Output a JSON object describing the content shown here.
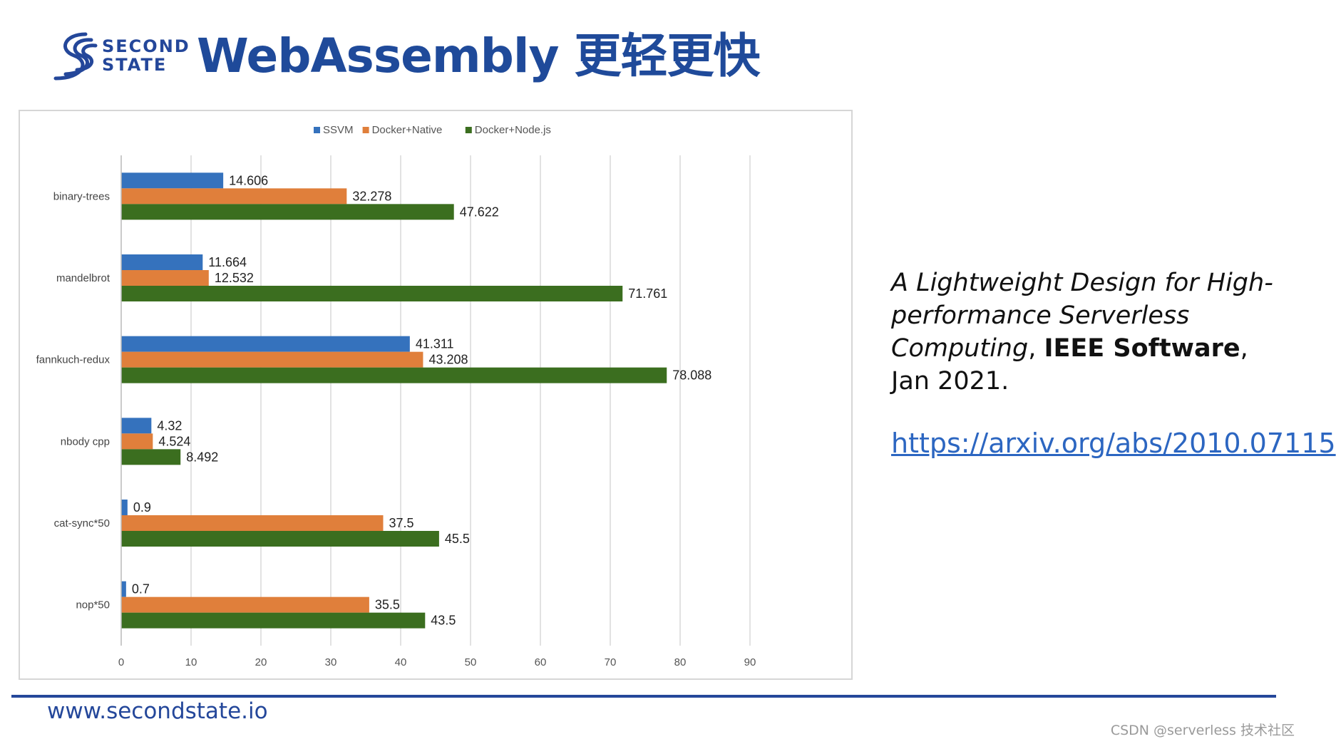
{
  "header": {
    "logo_line1": "SECOND",
    "logo_line2": "STATE",
    "title": "WebAssembly 更轻更快"
  },
  "chart_data": {
    "type": "bar",
    "orientation": "horizontal",
    "categories": [
      "binary-trees",
      "mandelbrot",
      "fannkuch-redux",
      "nbody cpp",
      "cat-sync*50",
      "nop*50"
    ],
    "series": [
      {
        "name": "SSVM",
        "color": "#3572bd",
        "values": [
          14.606,
          11.664,
          41.311,
          4.32,
          0.9,
          0.7
        ],
        "labels": [
          "14.606",
          "11.664",
          "41.311",
          "4.32",
          "0.9",
          "0.7"
        ]
      },
      {
        "name": "Docker+Native",
        "color": "#e07f3b",
        "values": [
          32.278,
          12.532,
          43.208,
          4.524,
          37.5,
          35.5
        ],
        "labels": [
          "32.278",
          "12.532",
          "43.208",
          "4.524",
          "37.5",
          "35.5"
        ]
      },
      {
        "name": "Docker+Node.js",
        "color": "#3b6e1f",
        "values": [
          47.622,
          71.761,
          78.088,
          8.492,
          45.5,
          43.5
        ],
        "labels": [
          "47.622",
          "71.761",
          "78.088",
          "8.492",
          "45.5",
          "43.5"
        ]
      }
    ],
    "xlim": [
      0,
      90
    ],
    "xticks": [
      "0",
      "10",
      "20",
      "30",
      "40",
      "50",
      "60",
      "70",
      "80",
      "90"
    ],
    "grid": true,
    "legend_position": "top-center"
  },
  "citation": {
    "title_italic": "A Lightweight Design for High-performance Serverless Computing",
    "separator": ", ",
    "journal": "IEEE Software",
    "date": ", Jan 2021."
  },
  "link": {
    "text": "https://arxiv.org/abs/2010.07115"
  },
  "footer": {
    "url": "www.secondstate.io",
    "watermark": "CSDN @serverless 技术社区"
  },
  "colors": {
    "brand": "#24479a",
    "link": "#2c66c1"
  }
}
